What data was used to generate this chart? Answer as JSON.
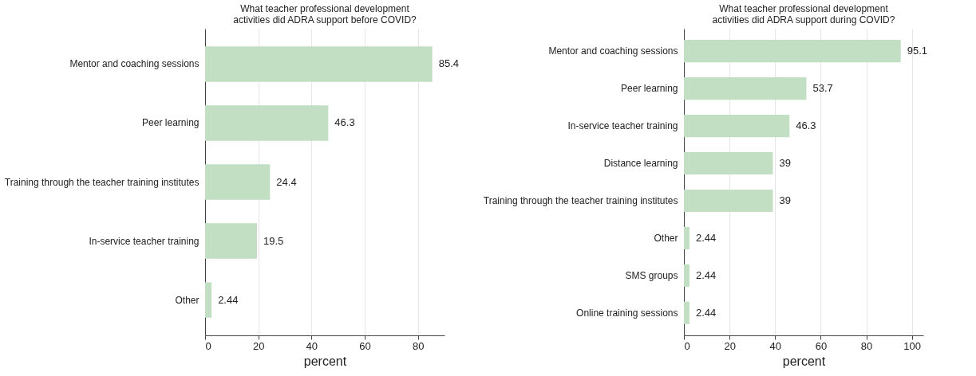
{
  "chart_data": [
    {
      "type": "bar",
      "orientation": "horizontal",
      "title": "What teacher professional development\nactivities did ADRA support before COVID?",
      "xlabel": "percent",
      "categories": [
        "Mentor and coaching sessions",
        "Peer learning",
        "Training through the teacher training institutes",
        "In-service teacher training",
        "Other"
      ],
      "values": [
        85.4,
        46.3,
        24.4,
        19.5,
        2.44
      ],
      "color": "#c2dfc3",
      "data_labels": true,
      "xlim": [
        0,
        90
      ],
      "xticks": [
        0,
        20,
        40,
        60,
        80
      ],
      "grid": "x"
    },
    {
      "type": "bar",
      "orientation": "horizontal",
      "title": "What teacher professional development\nactivities did ADRA support during COVID?",
      "xlabel": "percent",
      "categories": [
        "Mentor and coaching sessions",
        "Peer learning",
        "In-service teacher training",
        "Distance learning",
        "Training through the teacher training institutes",
        "Other",
        "SMS groups",
        "Online training sessions"
      ],
      "values": [
        95.1,
        53.7,
        46.3,
        39,
        39,
        2.44,
        2.44,
        2.44
      ],
      "color": "#c2dfc3",
      "data_labels": true,
      "xlim": [
        0,
        105
      ],
      "xticks": [
        0,
        20,
        40,
        60,
        80,
        100
      ],
      "grid": "x"
    }
  ]
}
